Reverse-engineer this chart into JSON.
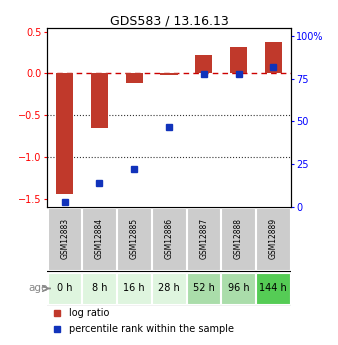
{
  "title": "GDS583 / 13.16.13",
  "samples": [
    "GSM12883",
    "GSM12884",
    "GSM12885",
    "GSM12886",
    "GSM12887",
    "GSM12888",
    "GSM12889"
  ],
  "ages": [
    "0 h",
    "8 h",
    "16 h",
    "28 h",
    "52 h",
    "96 h",
    "144 h"
  ],
  "age_colors": [
    "#dff5df",
    "#dff5df",
    "#dff5df",
    "#dff5df",
    "#aaddaa",
    "#aaddaa",
    "#55cc55"
  ],
  "log_ratio": [
    -1.45,
    -0.65,
    -0.12,
    -0.02,
    0.22,
    0.32,
    0.38
  ],
  "percentile_rank": [
    3,
    14,
    22,
    47,
    78,
    78,
    82
  ],
  "ylim_left": [
    -1.6,
    0.55
  ],
  "ylim_right": [
    0,
    105
  ],
  "bar_color": "#c0392b",
  "dot_color": "#1133bb",
  "hline_color": "#cc0000",
  "dotline_color": "#333333",
  "yticks_left": [
    -1.5,
    -1.0,
    -0.5,
    0.0,
    0.5
  ],
  "yticks_right": [
    0,
    25,
    50,
    75,
    100
  ],
  "ytick_labels_right": [
    "0",
    "25",
    "50",
    "75",
    "100%"
  ],
  "bar_width": 0.5,
  "sample_bg_color": "#cccccc",
  "legend_log_ratio": "log ratio",
  "legend_percentile": "percentile rank within the sample"
}
